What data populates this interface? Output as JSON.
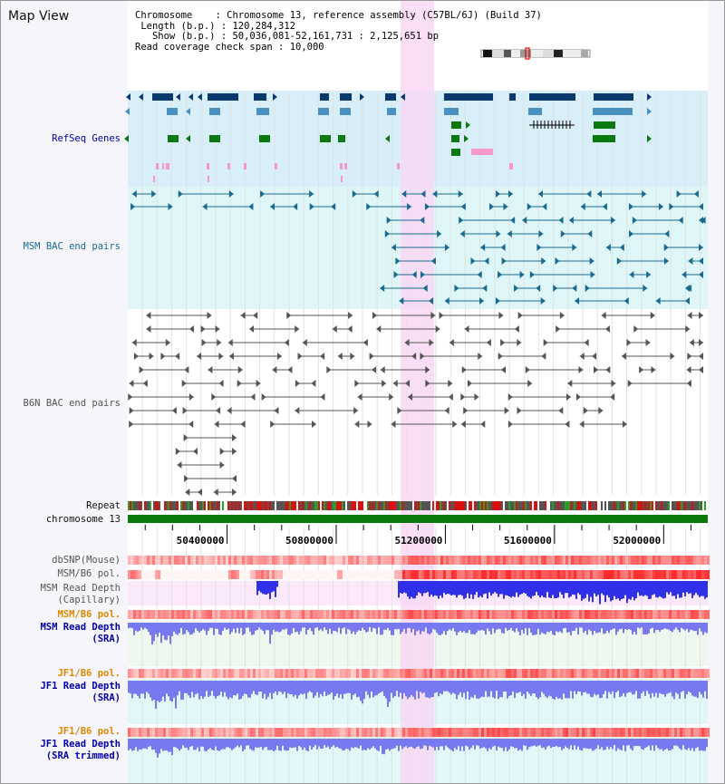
{
  "window": {
    "title": "Map View"
  },
  "info": {
    "chromosome_label": "Chromosome",
    "chromosome_value": "Chromosome 13, reference assembly (C57BL/6J) (Build 37)",
    "length_label": "Length (b.p.)",
    "length_value": "120,284,312",
    "show_label": "Show (b.p.)",
    "show_value": "50,036,081-52,161,731 : 2,125,651 bp",
    "span_label": "Read coverage check span",
    "span_value": "10,000"
  },
  "tracks": {
    "refseq": "RefSeq Genes",
    "msm_bac": "MSM BAC end pairs",
    "b6n_bac": "B6N BAC end pairs",
    "repeat": "Repeat",
    "chromosome": "chromosome 13",
    "dbsnp": "dbSNP(Mouse)",
    "msm_pol": "MSM/B6 pol.",
    "msm_depth_cap_1": "MSM Read Depth",
    "msm_depth_cap_2": "(Capillary)",
    "msm_pol_sra": "MSM/B6 pol.",
    "msm_depth_sra_1": "MSM Read Depth",
    "msm_depth_sra_2": "(SRA)",
    "jf1_pol": "JF1/B6 pol.",
    "jf1_depth_sra_1": "JF1 Read Depth",
    "jf1_depth_sra_2": "(SRA)",
    "jf1_pol_trim": "JF1/B6 pol.",
    "jf1_depth_trim_1": "JF1 Read Depth",
    "jf1_depth_trim_2": "(SRA trimmed)"
  },
  "ruler": {
    "ticks": [
      "50400000",
      "50800000",
      "51200000",
      "51600000",
      "52000000"
    ]
  },
  "view": {
    "start_bp": 50036081,
    "end_bp": 52161731
  },
  "colors": {
    "highlight": "#f8d8f4",
    "refseq_bg": "#d8eef8",
    "msm_bg": "#dff6f8",
    "gene_dark": "#0a3a6e",
    "gene_mid": "#4a90c0",
    "gene_green": "#0a7a10",
    "gene_pink": "#f898c8",
    "bac_teal": "#1a6a90",
    "bac_gray": "#555555",
    "chrom_green": "#0a7a0a",
    "depth_blue": "#3030e8",
    "depth_light": "#7878f0",
    "pol_red": "#e83030",
    "label_blue": "#0000aa",
    "label_orange": "#dd8800"
  }
}
